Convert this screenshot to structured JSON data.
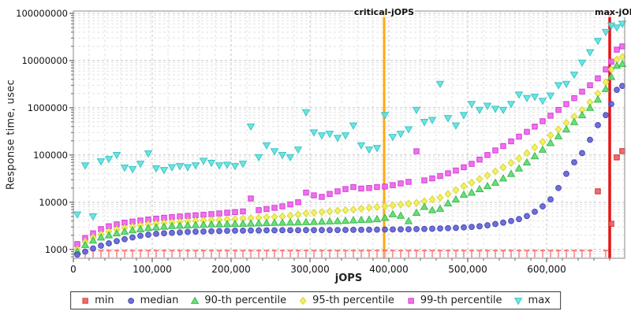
{
  "y_axis": {
    "title": "Response time, usec",
    "tick_labels": [
      "1000",
      "10000",
      "100000",
      "1000000",
      "10000000",
      "100000000"
    ],
    "tick_values": [
      1000,
      10000,
      100000,
      1000000,
      10000000,
      100000000
    ]
  },
  "x_axis": {
    "title": "jOPS",
    "tick_labels": [
      "0",
      "100,000",
      "200,000",
      "300,000",
      "400,000",
      "500,000",
      "600,000"
    ],
    "tick_values": [
      0,
      100000,
      200000,
      300000,
      400000,
      500000,
      600000
    ],
    "minor_step": 20000
  },
  "annotations": {
    "critical": {
      "label": "critical-jOPS",
      "x": 394000,
      "color": "#ffa812"
    },
    "max": {
      "label": "max-jOPS",
      "x": 680000,
      "color": "#e61414"
    }
  },
  "legend": [
    {
      "label": "min",
      "marker": "square",
      "color": "#f25c5c",
      "stroke": "#d84040"
    },
    {
      "label": "median",
      "marker": "circle",
      "color": "#6161d6",
      "stroke": "#4848b8"
    },
    {
      "label": "90-th percentile",
      "marker": "triangle-up",
      "color": "#59db6b",
      "stroke": "#3dbb50"
    },
    {
      "label": "95-th percentile",
      "marker": "diamond",
      "color": "#f0ef52",
      "stroke": "#d8d63a"
    },
    {
      "label": "99-th percentile",
      "marker": "square",
      "color": "#ef61ef",
      "stroke": "#d23fd2"
    },
    {
      "label": "max",
      "marker": "triangle-down",
      "color": "#5fe0e0",
      "stroke": "#3cc6c6"
    }
  ],
  "chart_data": {
    "type": "scatter",
    "title": "",
    "xlabel": "jOPS",
    "ylabel": "Response time, usec",
    "yscale": "log",
    "xlim": [
      0,
      699000
    ],
    "ylim": [
      650,
      112000000
    ],
    "grid": true,
    "legend_position": "bottom",
    "vlines": [
      {
        "label": "critical-jOPS",
        "x": 394000,
        "color": "#ffa812"
      },
      {
        "label": "max-jOPS",
        "x": 680000,
        "color": "#e61414"
      }
    ],
    "x": [
      5000,
      15000,
      25000,
      35000,
      45000,
      55000,
      65000,
      75000,
      85000,
      95000,
      105000,
      115000,
      125000,
      135000,
      145000,
      155000,
      165000,
      175000,
      185000,
      195000,
      205000,
      215000,
      225000,
      235000,
      245000,
      255000,
      265000,
      275000,
      285000,
      295000,
      305000,
      315000,
      325000,
      335000,
      345000,
      355000,
      365000,
      375000,
      385000,
      395000,
      405000,
      415000,
      425000,
      435000,
      445000,
      455000,
      465000,
      475000,
      485000,
      495000,
      505000,
      515000,
      525000,
      535000,
      545000,
      555000,
      565000,
      575000,
      585000,
      595000,
      605000,
      615000,
      625000,
      635000,
      645000,
      655000,
      665000,
      675000,
      682000,
      689000,
      696000
    ],
    "series": [
      {
        "name": "min",
        "marker": "min-T",
        "color": "#ff9f9f",
        "stroke": "#f25c5c",
        "values": [
          950,
          950,
          950,
          950,
          950,
          950,
          950,
          950,
          950,
          950,
          950,
          950,
          950,
          950,
          950,
          950,
          950,
          950,
          950,
          950,
          950,
          950,
          950,
          950,
          950,
          950,
          950,
          950,
          950,
          950,
          950,
          950,
          950,
          950,
          950,
          950,
          950,
          950,
          950,
          950,
          950,
          950,
          950,
          950,
          950,
          950,
          950,
          950,
          950,
          950,
          950,
          950,
          950,
          950,
          950,
          950,
          950,
          950,
          950,
          950,
          950,
          950,
          950,
          950,
          950,
          950,
          17000,
          950,
          3500,
          89000,
          121000
        ]
      },
      {
        "name": "max",
        "marker": "triangle-down",
        "color": "#5fe0e0",
        "stroke": "#3cc6c6",
        "values": [
          5500,
          60000,
          5000,
          73000,
          82000,
          100000,
          54000,
          50000,
          65000,
          108000,
          52000,
          48000,
          55000,
          58000,
          55000,
          60000,
          75000,
          68000,
          60000,
          62000,
          58000,
          65000,
          400000,
          90000,
          160000,
          120000,
          100000,
          90000,
          130000,
          800000,
          300000,
          260000,
          280000,
          230000,
          260000,
          420000,
          160000,
          130000,
          140000,
          700000,
          240000,
          280000,
          350000,
          900000,
          500000,
          550000,
          3200000,
          600000,
          420000,
          700000,
          1200000,
          900000,
          1100000,
          950000,
          900000,
          1200000,
          1900000,
          1600000,
          1700000,
          1400000,
          1800000,
          3000000,
          3200000,
          5000000,
          9000000,
          15000000,
          26000000,
          40000000,
          55000000,
          50000000,
          60000000
        ]
      },
      {
        "name": "p99",
        "marker": "square",
        "color": "#ef61ef",
        "stroke": "#d23fd2",
        "values": [
          1300,
          1750,
          2200,
          2700,
          3100,
          3400,
          3700,
          3900,
          4100,
          4300,
          4500,
          4700,
          4850,
          5000,
          5150,
          5300,
          5450,
          5600,
          5800,
          6000,
          6200,
          6400,
          12000,
          6800,
          7200,
          7600,
          8200,
          9000,
          10000,
          16000,
          14000,
          13000,
          15000,
          17000,
          19000,
          21000,
          19500,
          20000,
          21000,
          21500,
          23000,
          25000,
          27000,
          120000,
          29000,
          32000,
          36000,
          41000,
          47000,
          55000,
          65000,
          80000,
          100000,
          125000,
          155000,
          195000,
          245000,
          310000,
          400000,
          520000,
          680000,
          900000,
          1200000,
          1600000,
          2200000,
          3000000,
          4200000,
          6500000,
          9500000,
          17000000,
          20000000
        ]
      },
      {
        "name": "p95",
        "marker": "diamond",
        "color": "#f0ef52",
        "stroke": "#d8d63a",
        "values": [
          1000,
          1450,
          1800,
          2100,
          2400,
          2650,
          2850,
          3050,
          3250,
          3400,
          3550,
          3650,
          3750,
          3850,
          3950,
          4050,
          4100,
          4200,
          4250,
          4350,
          4400,
          4500,
          4600,
          4700,
          4800,
          4900,
          5000,
          5200,
          5500,
          5800,
          6000,
          6200,
          6400,
          6600,
          6800,
          7000,
          7300,
          7600,
          7900,
          8200,
          8600,
          9000,
          9300,
          9700,
          10500,
          11500,
          12500,
          15000,
          18000,
          22000,
          26000,
          31000,
          37000,
          45000,
          55000,
          68000,
          85000,
          110000,
          145000,
          190000,
          260000,
          350000,
          480000,
          650000,
          900000,
          1300000,
          2000000,
          3500000,
          6500000,
          10500000,
          12000000
        ]
      },
      {
        "name": "p90",
        "marker": "triangle-up",
        "color": "#59db6b",
        "stroke": "#3dbb50",
        "values": [
          900,
          1250,
          1550,
          1800,
          2000,
          2200,
          2400,
          2550,
          2700,
          2850,
          2950,
          3050,
          3150,
          3200,
          3250,
          3300,
          3350,
          3400,
          3420,
          3450,
          3500,
          3520,
          3560,
          3600,
          3640,
          3680,
          3700,
          3730,
          3760,
          3800,
          3850,
          3900,
          3950,
          4000,
          4050,
          4150,
          4250,
          4300,
          4400,
          4700,
          5600,
          5200,
          4000,
          6000,
          8000,
          6800,
          7300,
          9500,
          11500,
          14500,
          16000,
          19000,
          22000,
          26000,
          32000,
          40000,
          52000,
          70000,
          95000,
          130000,
          180000,
          250000,
          350000,
          500000,
          700000,
          1000000,
          1500000,
          2500000,
          4500000,
          7800000,
          8500000
        ]
      },
      {
        "name": "median",
        "marker": "circle",
        "color": "#6161d6",
        "stroke": "#4848b8",
        "values": [
          780,
          900,
          1050,
          1200,
          1350,
          1500,
          1650,
          1800,
          1950,
          2050,
          2150,
          2200,
          2250,
          2300,
          2350,
          2380,
          2400,
          2430,
          2450,
          2480,
          2500,
          2500,
          2520,
          2520,
          2540,
          2540,
          2550,
          2550,
          2550,
          2560,
          2560,
          2570,
          2580,
          2580,
          2590,
          2600,
          2600,
          2620,
          2630,
          2640,
          2650,
          2660,
          2680,
          2700,
          2720,
          2750,
          2780,
          2820,
          2870,
          2930,
          3000,
          3100,
          3250,
          3450,
          3700,
          4000,
          4400,
          5100,
          6300,
          8200,
          11500,
          20000,
          40000,
          70000,
          110000,
          210000,
          430000,
          700000,
          1200000,
          2400000,
          2900000
        ]
      }
    ]
  }
}
